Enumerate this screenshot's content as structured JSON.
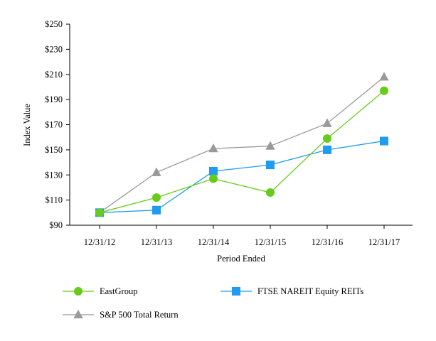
{
  "chart_data": {
    "type": "line",
    "title": "",
    "xlabel": "Period Ended",
    "ylabel": "Index Value",
    "categories": [
      "12/31/12",
      "12/31/13",
      "12/31/14",
      "12/31/15",
      "12/31/16",
      "12/31/17"
    ],
    "ylim": [
      90,
      250
    ],
    "yticks": [
      90,
      110,
      130,
      150,
      170,
      190,
      210,
      230,
      250
    ],
    "ytick_labels": [
      "$90",
      "$110",
      "$130",
      "$150",
      "$170",
      "$190",
      "$210",
      "$230",
      "$250"
    ],
    "grid": false,
    "legend_position": "bottom",
    "series": [
      {
        "name": "EastGroup",
        "values": [
          100,
          112,
          127,
          116,
          159,
          197
        ],
        "color": "#66cc1a",
        "marker": "circle"
      },
      {
        "name": "FTSE NAREIT Equity REITs",
        "values": [
          100,
          102,
          133,
          138,
          150,
          157
        ],
        "color": "#1f9bf0",
        "marker": "square"
      },
      {
        "name": "S&P 500 Total Return",
        "values": [
          100,
          132,
          151,
          153,
          171,
          208
        ],
        "color": "#999999",
        "marker": "triangle"
      }
    ]
  }
}
